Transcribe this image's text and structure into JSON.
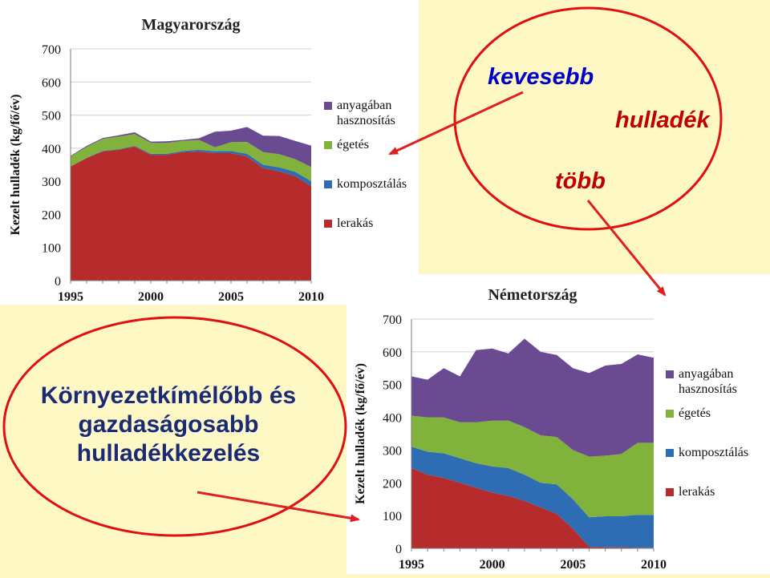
{
  "annotations": {
    "kevesebb": "kevesebb",
    "hulladek": "hulladék",
    "tobb": "több",
    "slogan": [
      "Környezetkímélőbb és",
      "gazdaságosabb",
      "hulladékkezelés"
    ]
  },
  "colors": {
    "background": "#fdf8c4",
    "ellipse": "#e01010",
    "arrow": "#e02020",
    "lerakas": "#b62b2b",
    "komposztalas": "#2e6db3",
    "egetes": "#80b23c",
    "anyagaban": "#6a4a90"
  },
  "chart_data": [
    {
      "type": "area",
      "stacked": true,
      "title": "Magyarország",
      "ylabel": "Kezelt hulladék (kg/fő/év)",
      "ylim": [
        0,
        700
      ],
      "yticks": [
        "0",
        "100",
        "200",
        "300",
        "400",
        "500",
        "600",
        "700"
      ],
      "xticks": [
        "1995",
        "2000",
        "2005",
        "2010"
      ],
      "x": [
        1995,
        1996,
        1997,
        1998,
        1999,
        2000,
        2001,
        2002,
        2003,
        2004,
        2005,
        2006,
        2007,
        2008,
        2009,
        2010
      ],
      "legend_position": "right",
      "series": [
        {
          "name": "lerakás",
          "key": "lerakas",
          "values": [
            345,
            370,
            390,
            395,
            405,
            380,
            380,
            388,
            390,
            385,
            385,
            375,
            340,
            330,
            315,
            285
          ]
        },
        {
          "name": "komposztálás",
          "key": "komposztalas",
          "values": [
            0,
            1,
            2,
            2,
            2,
            3,
            3,
            4,
            5,
            6,
            7,
            8,
            10,
            12,
            14,
            15
          ]
        },
        {
          "name": "égetés",
          "key": "egetes",
          "values": [
            30,
            33,
            36,
            38,
            36,
            33,
            33,
            30,
            30,
            12,
            26,
            36,
            38,
            40,
            38,
            43
          ]
        },
        {
          "name": "anyagában hasznosítás",
          "key": "anyagaban",
          "values": [
            2,
            3,
            3,
            4,
            5,
            4,
            5,
            3,
            5,
            47,
            35,
            45,
            50,
            55,
            55,
            65
          ]
        }
      ]
    },
    {
      "type": "area",
      "stacked": true,
      "title": "Németország",
      "ylabel": "Kezelt hulladék (kg/fő/év)",
      "ylim": [
        0,
        700
      ],
      "yticks": [
        "0",
        "100",
        "200",
        "300",
        "400",
        "500",
        "600",
        "700"
      ],
      "xticks": [
        "1995",
        "2000",
        "2005",
        "2010"
      ],
      "x": [
        1995,
        1996,
        1997,
        1998,
        1999,
        2000,
        2001,
        2002,
        2003,
        2004,
        2005,
        2006,
        2007,
        2008,
        2009,
        2010
      ],
      "legend_position": "right",
      "series": [
        {
          "name": "lerakás",
          "key": "lerakas",
          "values": [
            245,
            225,
            215,
            200,
            185,
            170,
            160,
            145,
            125,
            105,
            60,
            5,
            3,
            3,
            2,
            2
          ]
        },
        {
          "name": "komposztálás",
          "key": "komposztalas",
          "values": [
            65,
            70,
            75,
            75,
            75,
            80,
            85,
            80,
            75,
            90,
            90,
            90,
            95,
            95,
            100,
            100
          ]
        },
        {
          "name": "égetés",
          "key": "egetes",
          "values": [
            95,
            105,
            110,
            110,
            125,
            140,
            145,
            145,
            145,
            145,
            150,
            185,
            185,
            190,
            220,
            220
          ]
        },
        {
          "name": "anyagában hasznosítás",
          "key": "anyagaban",
          "values": [
            120,
            115,
            150,
            140,
            220,
            220,
            205,
            270,
            255,
            250,
            250,
            255,
            275,
            275,
            270,
            260
          ]
        }
      ]
    }
  ]
}
